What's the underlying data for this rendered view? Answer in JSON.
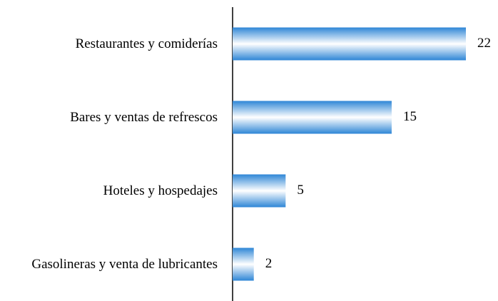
{
  "chart_data": {
    "type": "bar",
    "orientation": "horizontal",
    "categories": [
      "Restaurantes y comiderías",
      "Bares y ventas de refrescos",
      "Hoteles y hospedajes",
      "Gasolineras y venta de lubricantes"
    ],
    "values": [
      22,
      15,
      5,
      2
    ],
    "color": "#2e86d6"
  }
}
